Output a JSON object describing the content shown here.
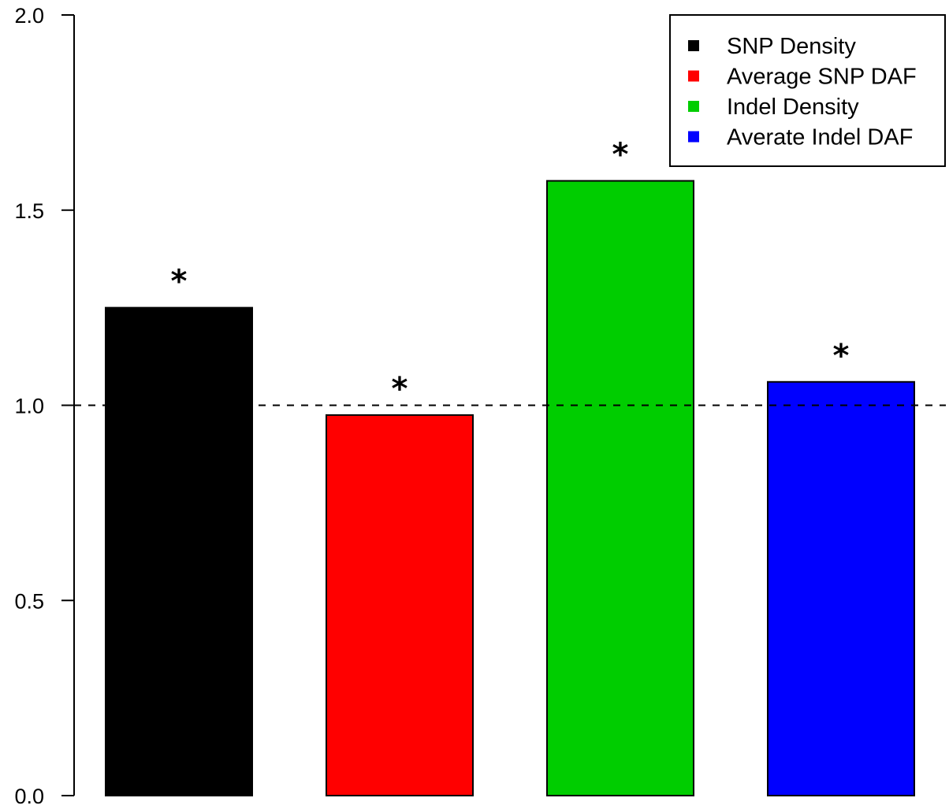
{
  "chart_data": {
    "type": "bar",
    "title": "",
    "xlabel": "",
    "ylabel": "",
    "ylim": [
      0,
      2
    ],
    "yticks": [
      0,
      0.5,
      1,
      1.5,
      2
    ],
    "ytick_labels": [
      "0.0",
      "0.5",
      "1.0",
      "1.5",
      "2.0"
    ],
    "reference_line": 1.0,
    "reference_line_style": "dashed",
    "grid": false,
    "legend_position": "top-right",
    "bars": [
      {
        "name": "SNP Density",
        "value": 1.25,
        "color": "#000000",
        "annotation": "*"
      },
      {
        "name": "Average SNP DAF",
        "value": 0.975,
        "color": "#ff0000",
        "annotation": "*"
      },
      {
        "name": "Indel Density",
        "value": 1.575,
        "color": "#00cd00",
        "annotation": "*"
      },
      {
        "name": "Averate Indel DAF",
        "value": 1.06,
        "color": "#0000ff",
        "annotation": "*"
      }
    ]
  }
}
